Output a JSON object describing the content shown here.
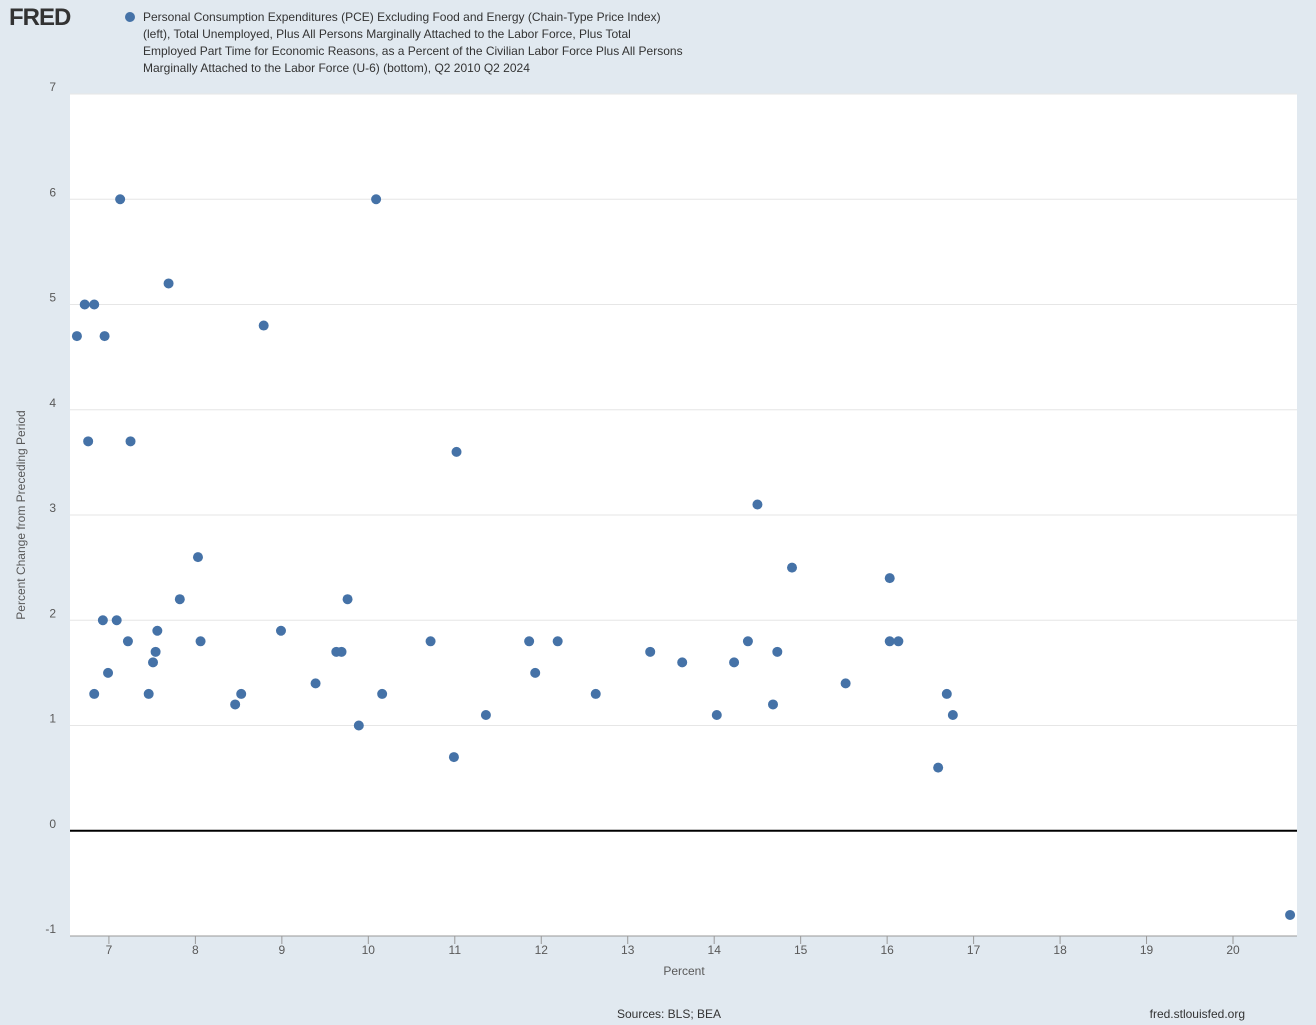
{
  "header": {
    "logo": "FRED"
  },
  "chart_data": {
    "type": "scatter",
    "xlabel": "Percent",
    "ylabel": "Percent Change from Preceding Period",
    "x": [
      6.63,
      6.72,
      6.83,
      6.76,
      6.95,
      7.13,
      7.25,
      7.69,
      8.79,
      10.09,
      11.02,
      14.5,
      14.9,
      16.03,
      8.03,
      7.82,
      9.76,
      6.93,
      7.09,
      7.22,
      7.56,
      7.54,
      7.51,
      6.99,
      6.83,
      7.46,
      8.06,
      8.99,
      8.46,
      8.53,
      9.39,
      9.63,
      9.69,
      9.89,
      10.16,
      10.72,
      10.99,
      11.36,
      11.86,
      11.93,
      12.19,
      12.63,
      13.26,
      13.63,
      14.03,
      14.23,
      14.39,
      14.68,
      14.73,
      15.52,
      16.03,
      16.13,
      16.59,
      16.69,
      16.76,
      20.66
    ],
    "series": [
      {
        "name": "Personal Consumption Expenditures (PCE) Excluding Food and Energy (Chain-Type Price Index) (left), Total Unemployed, Plus All Persons Marginally Attached to the Labor Force, Plus Total Employed Part Time for Economic Reasons, as a Percent of the Civilian Labor Force Plus All Persons Marginally Attached to the Labor Force (U-6) (bottom), Q2 2010 Q2 2024",
        "color": "#4572a7",
        "values": [
          4.7,
          5.0,
          5.0,
          3.7,
          4.7,
          6.0,
          3.7,
          5.2,
          4.8,
          6.0,
          3.6,
          3.1,
          2.5,
          2.4,
          2.6,
          2.2,
          2.2,
          2.0,
          2.0,
          1.8,
          1.9,
          1.7,
          1.6,
          1.5,
          1.3,
          1.3,
          1.8,
          1.9,
          1.2,
          1.3,
          1.4,
          1.7,
          1.7,
          1.0,
          1.3,
          1.8,
          0.7,
          1.1,
          1.8,
          1.5,
          1.8,
          1.3,
          1.7,
          1.6,
          1.1,
          1.6,
          1.8,
          1.2,
          1.7,
          1.4,
          1.8,
          1.8,
          0.6,
          1.3,
          1.1,
          -0.8
        ]
      }
    ],
    "xlim": [
      6.55,
      20.74
    ],
    "ylim": [
      -1,
      7
    ],
    "xticks": [
      7,
      8,
      9,
      10,
      11,
      12,
      13,
      14,
      15,
      16,
      17,
      18,
      19,
      20
    ],
    "yticks": [
      -1,
      0,
      1,
      2,
      3,
      4,
      5,
      6,
      7
    ],
    "grid": true,
    "zero_line": true
  },
  "footer": {
    "sources": "Sources: BLS; BEA",
    "url": "fred.stlouisfed.org"
  }
}
